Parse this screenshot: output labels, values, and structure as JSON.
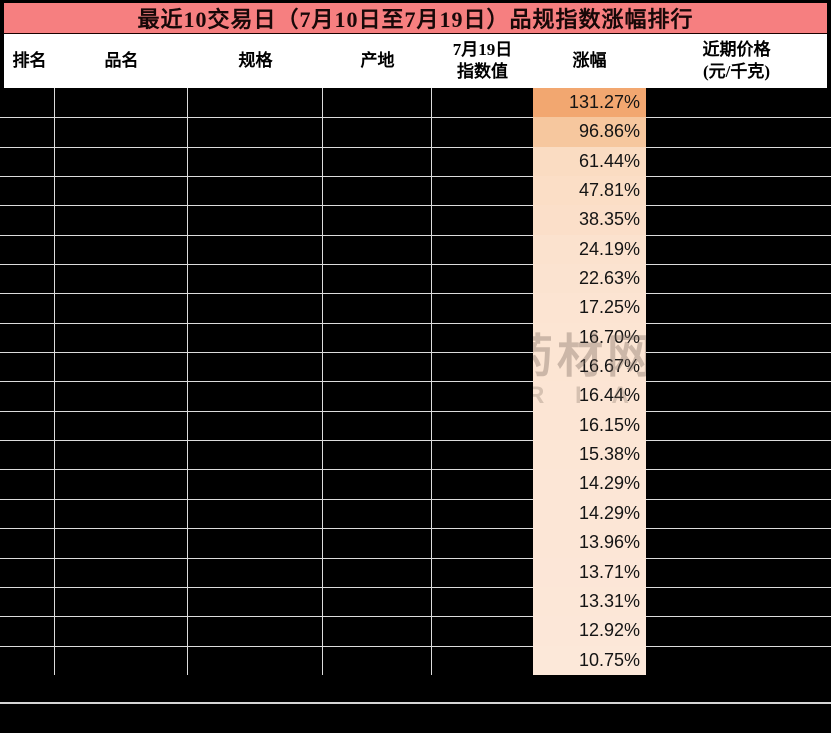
{
  "title": "最近10交易日（7月10日至7月19日）品规指数涨幅排行",
  "header": {
    "rank": "排名",
    "name": "品名",
    "spec": "规格",
    "origin": "产地",
    "index_line1": "7月19日",
    "index_line2": "指数值",
    "pct": "涨幅",
    "price_line1": "近期价格",
    "price_line2": "(元/千克)"
  },
  "chart_data": {
    "type": "table",
    "title": "最近10交易日（7月10日至7月19日）品规指数涨幅排行",
    "columns": [
      "排名",
      "品名",
      "规格",
      "产地",
      "7月19日指数值",
      "涨幅",
      "近期价格(元/千克)"
    ],
    "visible_column": "涨幅",
    "redacted_columns": [
      "排名",
      "品名",
      "规格",
      "产地",
      "7月19日指数值",
      "近期价格(元/千克)"
    ],
    "gain_percent": [
      131.27,
      96.86,
      61.44,
      47.81,
      38.35,
      24.19,
      22.63,
      17.25,
      16.7,
      16.67,
      16.44,
      16.15,
      15.38,
      14.29,
      14.29,
      13.96,
      13.71,
      13.31,
      12.92,
      10.75
    ],
    "gain_labels": [
      "131.27%",
      "96.86%",
      "61.44%",
      "47.81%",
      "38.35%",
      "24.19%",
      "22.63%",
      "17.25%",
      "16.70%",
      "16.67%",
      "16.44%",
      "16.15%",
      "15.38%",
      "14.29%",
      "14.29%",
      "13.96%",
      "13.71%",
      "13.31%",
      "12.92%",
      "10.75%"
    ],
    "row_colors": [
      "#F2A770",
      "#F6C79E",
      "#FADCC2",
      "#FBDEC6",
      "#FBDFC9",
      "#FBE2CE",
      "#FBE3D0",
      "#FCE4D2",
      "#FCE5D3",
      "#FCE5D3",
      "#FCE5D4",
      "#FCE5D4",
      "#FCE6D5",
      "#FCE6D6",
      "#FCE6D6",
      "#FCE6D6",
      "#FCE6D7",
      "#FCE7D7",
      "#FCE7D8",
      "#FCE8D9"
    ],
    "color_scale": {
      "min_color": "#FCE8D9",
      "max_color": "#F2A770"
    },
    "grid": true,
    "legend": false
  },
  "watermark": {
    "line1": "药材网",
    "line2": "R I A"
  },
  "colors": {
    "title_bg": "#F67F80",
    "title_text": "#180808",
    "header_bg": "#FFFFFF",
    "grid_line": "#DCDCDC",
    "redacted_cell": "#000000",
    "footer_line": "#D5D5D5"
  }
}
